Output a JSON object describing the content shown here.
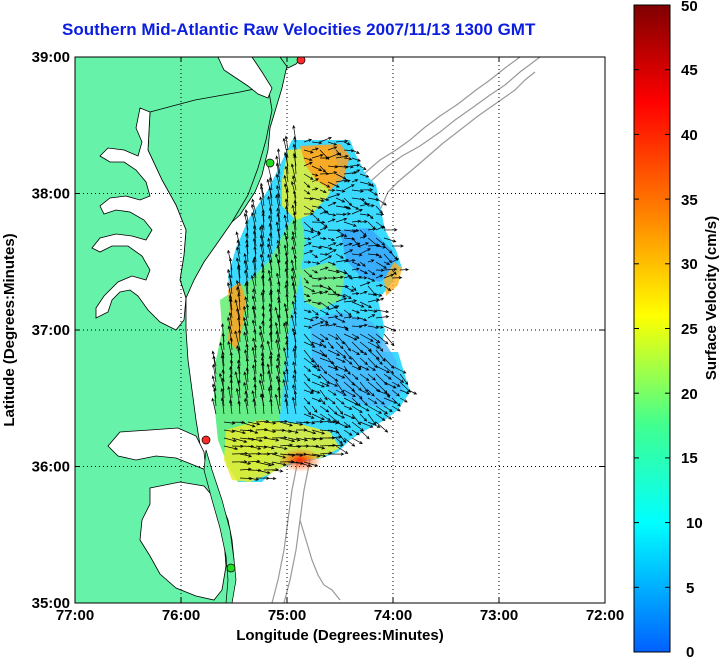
{
  "title": "Southern Mid-Atlantic Raw Velocities 2007/11/13 1300 GMT",
  "axes": {
    "xlabel": "Longitude (Degrees:Minutes)",
    "ylabel": "Latitude (Degrees:Minutes)",
    "xticks": [
      "77:00",
      "76:00",
      "75:00",
      "74:00",
      "73:00",
      "72:00"
    ],
    "yticks": [
      "39:00",
      "38:00",
      "37:00",
      "36:00",
      "35:00"
    ],
    "grid": "dotted"
  },
  "colorbar": {
    "label": "Surface Velocity (cm/s)",
    "ticks": [
      "50",
      "45",
      "40",
      "35",
      "30",
      "25",
      "20",
      "15",
      "10",
      "5",
      "0"
    ],
    "range": [
      0,
      50
    ],
    "colors": [
      "#0060ff",
      "#00ffff",
      "#40ff80",
      "#ffff00",
      "#ff8000",
      "#ff0000",
      "#800000"
    ]
  },
  "colors": {
    "land": "#66f2a8",
    "ocean": "#ffffff",
    "bathymetry": "#9a9a9a",
    "station_active": "#ff2a2a",
    "station_other": "#22dd22",
    "vector": "#000000"
  },
  "stations": [
    {
      "status": "active"
    },
    {
      "status": "other"
    },
    {
      "status": "active"
    },
    {
      "status": "other"
    }
  ]
}
